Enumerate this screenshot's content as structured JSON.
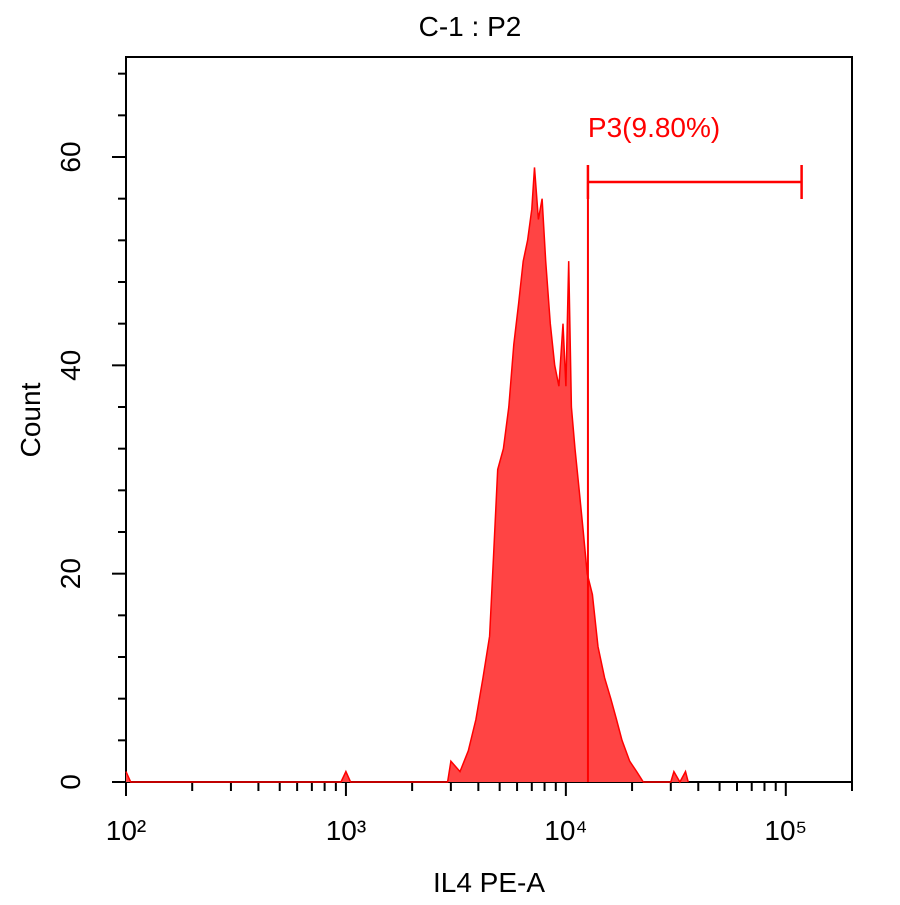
{
  "chart_data": {
    "type": "histogram-area",
    "title": "C-1 : P2",
    "x_label": "IL4 PE-A",
    "y_label": "Count",
    "x_scale": "log",
    "color": "#ff4444",
    "line_color": "#ff0000",
    "x": [
      100,
      105,
      950,
      1000,
      1050,
      2900,
      3000,
      3300,
      3600,
      3900,
      4200,
      4500,
      4700,
      4900,
      5200,
      5500,
      5800,
      6100,
      6400,
      6700,
      7000,
      7200,
      7500,
      7800,
      8100,
      8500,
      8900,
      9300,
      9700,
      10000,
      10300,
      10600,
      11000,
      11500,
      12000,
      12500,
      13200,
      14000,
      15000,
      16000,
      17000,
      18000,
      19500,
      21000,
      22500,
      30000,
      31000,
      33000,
      35000,
      36000
    ],
    "values": [
      1,
      0,
      0,
      1,
      0,
      0,
      2,
      1,
      3,
      6,
      10,
      14,
      22,
      30,
      32,
      36,
      42,
      46,
      50,
      52,
      55,
      59,
      54,
      56,
      50,
      44,
      40,
      38,
      44,
      38,
      50,
      36,
      32,
      28,
      24,
      20,
      18,
      13,
      10,
      8,
      6,
      4,
      2,
      1,
      0,
      0,
      1,
      0,
      1,
      0
    ],
    "xlim": [
      100,
      200000
    ],
    "xticks": [
      {
        "value": 100,
        "label": "10²"
      },
      {
        "value": 1000,
        "label": "10³"
      },
      {
        "value": 10000,
        "label": "10⁴"
      },
      {
        "value": 100000,
        "label": "10⁵"
      }
    ],
    "xticks_minor": [
      200,
      300,
      400,
      500,
      600,
      700,
      800,
      900,
      2000,
      3000,
      4000,
      5000,
      6000,
      7000,
      8000,
      9000,
      20000,
      30000,
      40000,
      50000,
      60000,
      70000,
      80000,
      90000,
      200000
    ],
    "ylim": [
      0,
      69.6
    ],
    "yticks": [
      0,
      20,
      40,
      60
    ],
    "yticks_minor": [
      4,
      8,
      12,
      16,
      24,
      28,
      32,
      36,
      44,
      48,
      52,
      56,
      64,
      68
    ],
    "gate": {
      "label": "P3(9.80%)",
      "range": [
        12600,
        118000
      ],
      "level": 57.6
    }
  }
}
